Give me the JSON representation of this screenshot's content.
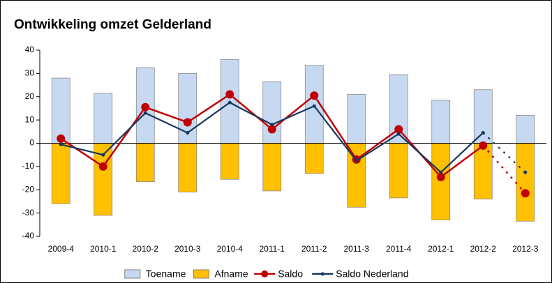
{
  "chart_data": {
    "type": "bar_line",
    "title": "Ontwikkeling omzet Gelderland",
    "categories": [
      "2009-4",
      "2010-1",
      "2010-2",
      "2010-3",
      "2010-4",
      "2011-1",
      "2011-2",
      "2011-3",
      "2011-4",
      "2012-1",
      "2012-2",
      "2012-3"
    ],
    "series": [
      {
        "name": "Toename",
        "type": "bar",
        "color": "#c6d9f1",
        "values": [
          28,
          21.5,
          32.5,
          30,
          36,
          26.5,
          33.5,
          21,
          29.5,
          18.5,
          23,
          12
        ]
      },
      {
        "name": "Afname",
        "type": "bar",
        "color": "#ffc000",
        "values": [
          -26,
          -31,
          -16.5,
          -21,
          -15.5,
          -20.5,
          -13,
          -27.5,
          -23.5,
          -33,
          -24,
          -33.5
        ]
      },
      {
        "name": "Saldo",
        "type": "line",
        "color": "#c00000",
        "marker": "large",
        "dashed_last_segment": true,
        "values": [
          2,
          -10,
          15.5,
          9,
          21,
          6,
          20.5,
          -7,
          6,
          -14.5,
          -1,
          -21.5
        ]
      },
      {
        "name": "Saldo Nederland",
        "type": "line",
        "color": "#17375e",
        "marker": "small",
        "dashed_last_segment": true,
        "values": [
          -0.5,
          -5,
          13,
          4.5,
          17.5,
          8,
          16,
          -7.5,
          4,
          -12.5,
          4.5,
          -12.5
        ]
      }
    ],
    "ylim": [
      -40,
      40
    ],
    "yticks": [
      -40,
      -30,
      -20,
      -10,
      0,
      10,
      20,
      30,
      40
    ],
    "legend": "bottom"
  }
}
